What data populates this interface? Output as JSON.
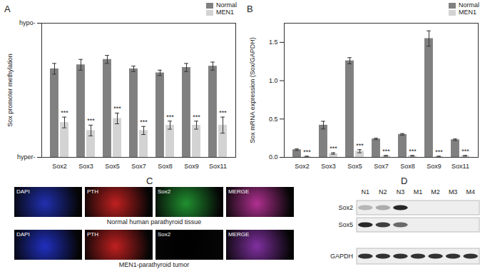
{
  "chart_data": [
    {
      "panel": "A",
      "type": "bar",
      "y_label": "Sox promoter methylation",
      "categories": [
        "Sox2",
        "Sox3",
        "Sox5",
        "Sox7",
        "Sox8",
        "Sox9",
        "Sox11"
      ],
      "series": [
        {
          "name": "Normal",
          "color": "#808080",
          "values": [
            66,
            69,
            73,
            66,
            63,
            67,
            68
          ],
          "errors": [
            4,
            4,
            3,
            2,
            2,
            3,
            3
          ]
        },
        {
          "name": "MEN1",
          "color": "#d3d3d3",
          "values": [
            26,
            20,
            29,
            20,
            24,
            24,
            24
          ],
          "errors": [
            4,
            4,
            4,
            3,
            3,
            3,
            6
          ],
          "annotations": [
            "***",
            "***",
            "***",
            "***",
            "***",
            "***",
            "***"
          ]
        }
      ],
      "ylim": [
        0,
        100
      ],
      "yticks": [
        {
          "value": 0,
          "label": "hyper-"
        },
        {
          "value": 100,
          "label": "hypo-"
        }
      ],
      "legend": "top-right"
    },
    {
      "panel": "B",
      "type": "bar",
      "y_label": "Sox mRNA expression (Sox/GAPDH)",
      "categories": [
        "Sox2",
        "Sox3",
        "Sox5",
        "Sox7",
        "Sox8",
        "Sox9",
        "Sox11"
      ],
      "series": [
        {
          "name": "Normal",
          "color": "#808080",
          "values": [
            0.1,
            0.42,
            1.26,
            0.24,
            0.3,
            1.55,
            0.23
          ],
          "errors": [
            0.01,
            0.05,
            0.04,
            0.01,
            0.01,
            0.1,
            0.01
          ]
        },
        {
          "name": "MEN1",
          "color": "#d3d3d3",
          "values": [
            0.01,
            0.05,
            0.08,
            0.02,
            0.02,
            0.01,
            0.02
          ],
          "errors": [
            0.005,
            0.01,
            0.02,
            0.005,
            0.005,
            0.005,
            0.005
          ],
          "annotations": [
            "***",
            "***",
            "***",
            "***",
            "***",
            "***",
            "***"
          ]
        }
      ],
      "ylim": [
        0,
        1.75
      ],
      "yticks": [
        {
          "value": 0,
          "label": "0.0"
        },
        0.5,
        {
          "value": 1,
          "label": "1.0"
        },
        1.5
      ],
      "legend": "top-right"
    }
  ],
  "panels": [
    {
      "panel": "C",
      "rows": [
        {
          "caption": "Normal human parathyroid tissue",
          "images": [
            {
              "label": "DAPI",
              "color": "#2030b0"
            },
            {
              "label": "PTH",
              "color": "#c02020"
            },
            {
              "label": "Sox2",
              "color": "#209030"
            },
            {
              "label": "MERGE",
              "color": "#b03090"
            }
          ]
        },
        {
          "caption": "MEN1-parathyroid tumor",
          "images": [
            {
              "label": "DAPI",
              "color": "#2030c0"
            },
            {
              "label": "PTH",
              "color": "#c02020"
            },
            {
              "label": "Sox2",
              "color": "#000000"
            },
            {
              "label": "MERGE",
              "color": "#8030a0"
            }
          ]
        }
      ]
    },
    {
      "panel": "D",
      "lanes": [
        "N1",
        "N2",
        "N3",
        "M1",
        "M2",
        "M3",
        "M4"
      ],
      "bands": [
        {
          "name": "Sox2",
          "intensity": [
            0.25,
            0.3,
            0.9,
            0,
            0,
            0,
            0
          ]
        },
        {
          "name": "Sox5",
          "intensity": [
            0.9,
            0.8,
            0.6,
            0,
            0,
            0,
            0
          ]
        },
        {
          "name": "GAPDH",
          "intensity": [
            0.85,
            0.85,
            0.85,
            0.85,
            0.85,
            0.85,
            0.85
          ]
        }
      ]
    }
  ]
}
